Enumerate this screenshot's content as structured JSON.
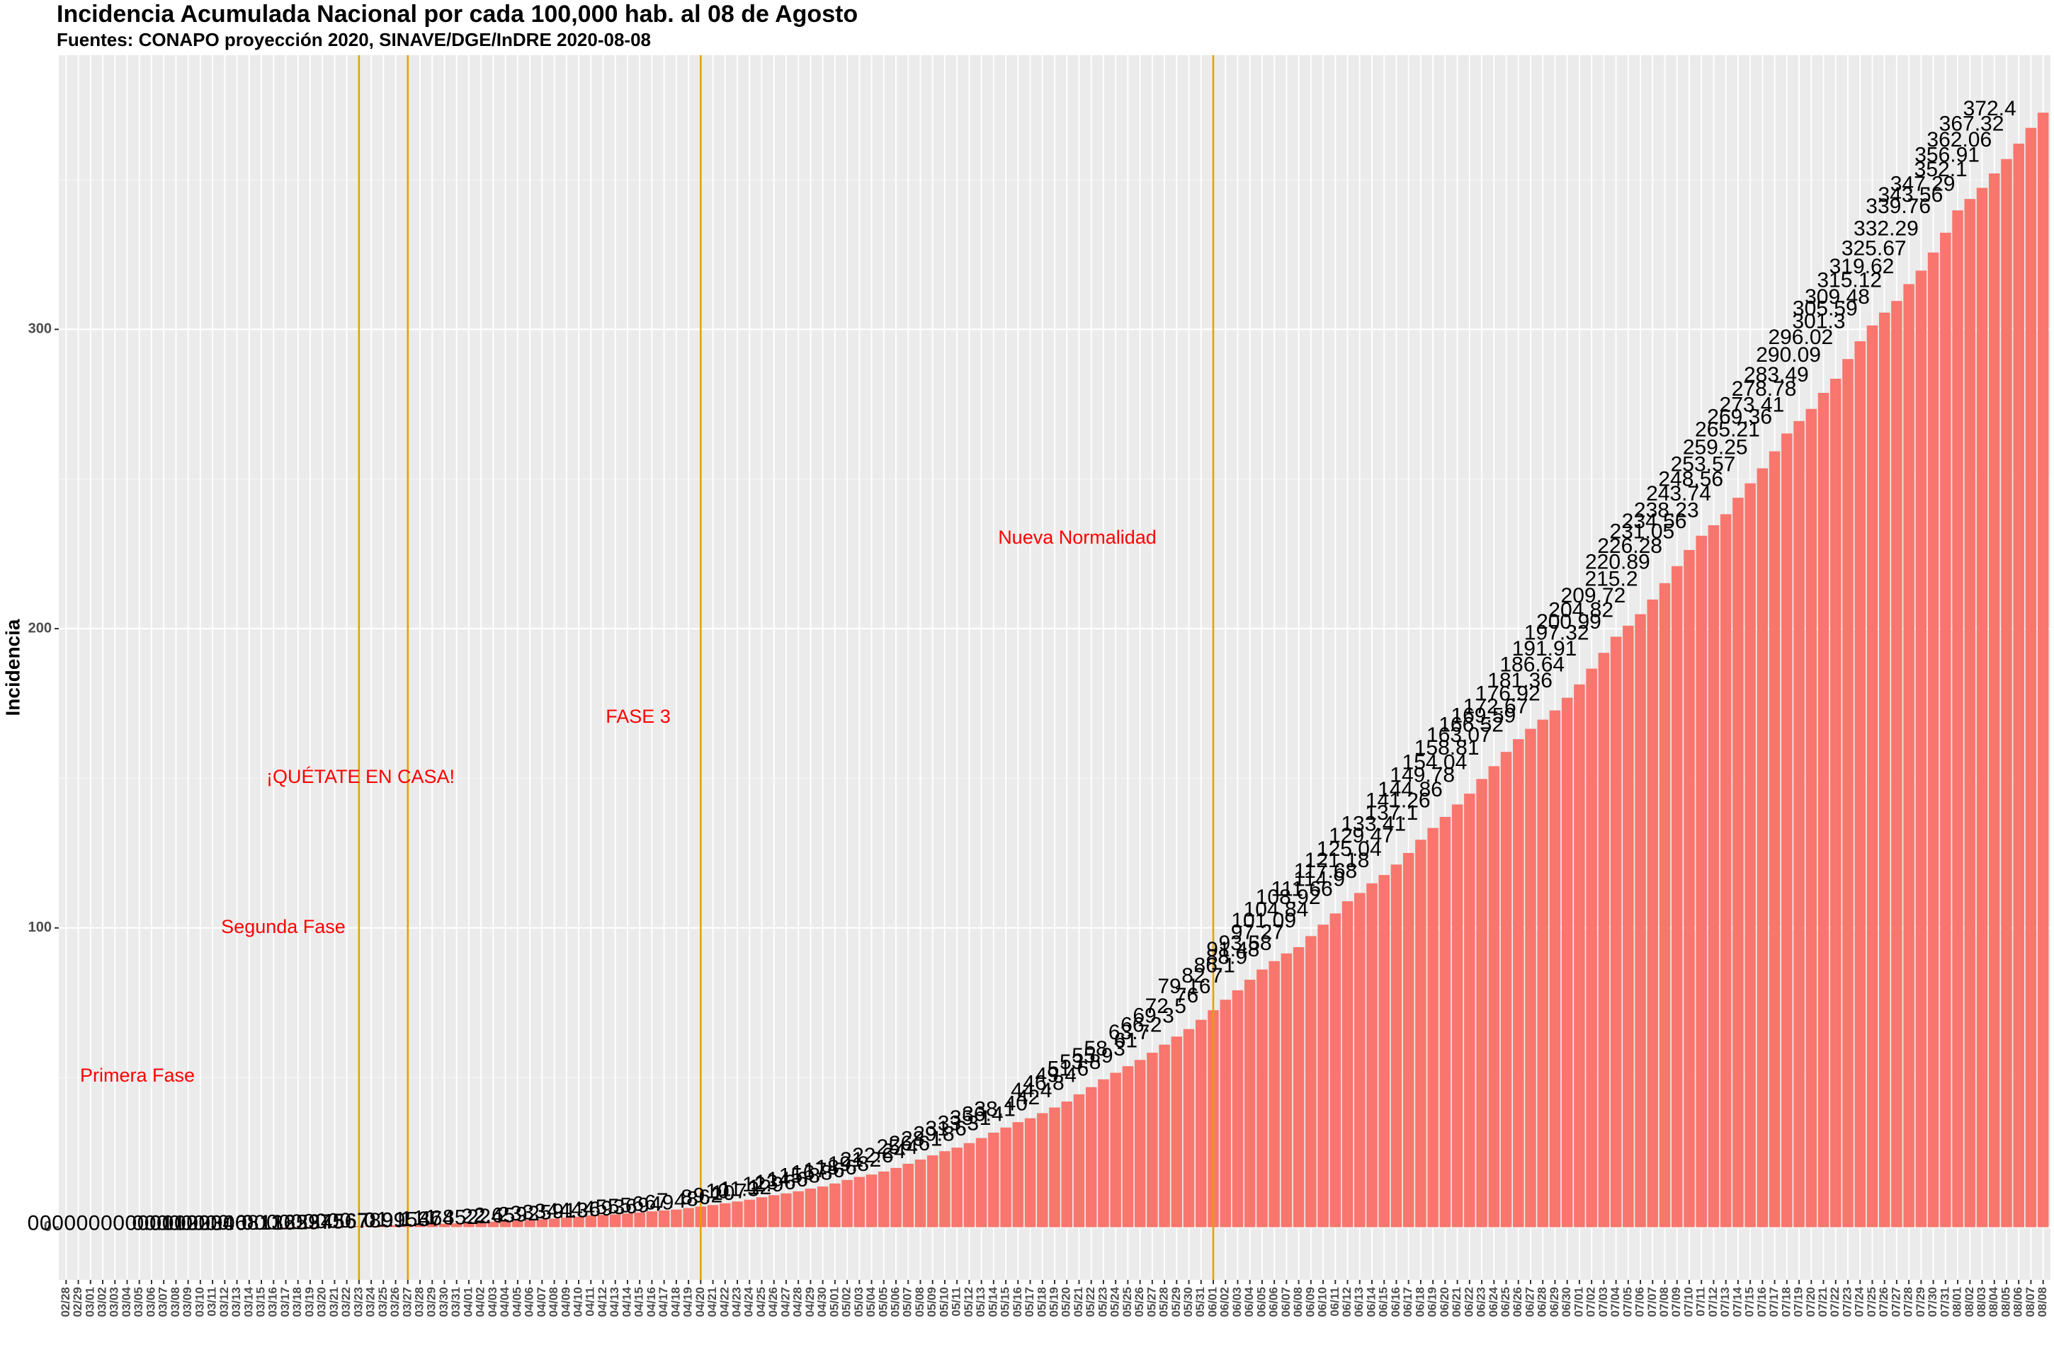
{
  "chart_data": {
    "type": "bar",
    "title": "Incidencia Acumulada Nacional por cada 100,000 hab. al 08 de Agosto",
    "subtitle": "Fuentes: CONAPO proyección 2020, SINAVE/DGE/InDRE 2020-08-08",
    "y_label": "Incidencia",
    "color": "#f8766d",
    "grid": true,
    "ylim": [
      -17.6,
      391.6
    ],
    "yticks": [
      0,
      100,
      200,
      300
    ],
    "yminor_grid": [
      50,
      150,
      250,
      350
    ],
    "vline_color": "#e69f00",
    "vlines": [
      "03/23",
      "03/27",
      "04/20",
      "06/01"
    ],
    "annotations": [
      "Primera Fase",
      "Segunda Fase",
      "¡QUÉTATE EN CASA!",
      "FASE 3",
      "Nueva Normalidad"
    ],
    "annotation_color": "#ff0000",
    "categories": [
      "02/28",
      "02/29",
      "03/01",
      "03/02",
      "03/03",
      "03/04",
      "03/05",
      "03/06",
      "03/07",
      "03/08",
      "03/09",
      "03/10",
      "03/11",
      "03/12",
      "03/13",
      "03/14",
      "03/15",
      "03/16",
      "03/17",
      "03/18",
      "03/19",
      "03/20",
      "03/21",
      "03/22",
      "03/23",
      "03/24",
      "03/25",
      "03/26",
      "03/27",
      "03/28",
      "03/29",
      "03/30",
      "03/31",
      "04/01",
      "04/02",
      "04/03",
      "04/04",
      "04/05",
      "04/06",
      "04/07",
      "04/08",
      "04/09",
      "04/10",
      "04/11",
      "04/12",
      "04/13",
      "04/14",
      "04/15",
      "04/16",
      "04/17",
      "04/18",
      "04/19",
      "04/20",
      "04/21",
      "04/22",
      "04/23",
      "04/24",
      "04/25",
      "04/26",
      "04/27",
      "04/28",
      "04/29",
      "04/30",
      "05/01",
      "05/02",
      "05/03",
      "05/04",
      "05/05",
      "05/06",
      "05/07",
      "05/08",
      "05/09",
      "05/10",
      "05/11",
      "05/12",
      "05/13",
      "05/14",
      "05/15",
      "05/16",
      "05/17",
      "05/18",
      "05/19",
      "05/20",
      "05/21",
      "05/22",
      "05/23",
      "05/24",
      "05/25",
      "05/26",
      "05/27",
      "05/28",
      "05/29",
      "05/30",
      "05/31",
      "06/01",
      "06/02",
      "06/03",
      "06/04",
      "06/05",
      "06/06",
      "06/07",
      "06/08",
      "06/09",
      "06/10",
      "06/11",
      "06/12",
      "06/13",
      "06/14",
      "06/15",
      "06/16",
      "06/17",
      "06/18",
      "06/19",
      "06/20",
      "06/21",
      "06/22",
      "06/23",
      "06/24",
      "06/25",
      "06/26",
      "06/27",
      "06/28",
      "06/29",
      "06/30",
      "07/01",
      "07/02",
      "07/03",
      "07/04",
      "07/05",
      "07/06",
      "07/07",
      "07/08",
      "07/09",
      "07/10",
      "07/11",
      "07/12",
      "07/13",
      "07/14",
      "07/15",
      "07/16",
      "07/17",
      "07/18",
      "07/19",
      "07/20",
      "07/21",
      "07/22",
      "07/23",
      "07/24",
      "07/25",
      "07/26",
      "07/27",
      "07/28",
      "07/29",
      "07/30",
      "07/31",
      "08/01",
      "08/02",
      "08/03",
      "08/04",
      "08/05",
      "08/06",
      "08/07",
      "08/08"
    ],
    "values": [
      0,
      0,
      0,
      0,
      0,
      0,
      0,
      0,
      0,
      0,
      0,
      0.01,
      0.01,
      0.02,
      0.02,
      0.03,
      0.04,
      0.06,
      0.08,
      0.1,
      0.13,
      0.16,
      0.25,
      0.29,
      0.37,
      0.45,
      0.56,
      0.67,
      0.78,
      0.9,
      0.99,
      1.15,
      1.3,
      1.47,
      1.64,
      1.85,
      2,
      2.2,
      2.4,
      2.65,
      2.9,
      3.2,
      3.5,
      3.9,
      4.1,
      4.3,
      4.6,
      4.9,
      5.3,
      5.6,
      5.9,
      6.4,
      6.9,
      7.4,
      8,
      8.6,
      9.2,
      10,
      10.7,
      11.3,
      12,
      12.9,
      13.6,
      14.6,
      15.8,
      16.8,
      17.6,
      18.6,
      19.8,
      21.2,
      22.6,
      24,
      25.4,
      26.6,
      28.1,
      29.8,
      31.6,
      33.3,
      35.1,
      36.4,
      38.1,
      40,
      42,
      44.4,
      46.8,
      49.4,
      51.6,
      53.8,
      55.9,
      58.3,
      61,
      63.7,
      66.2,
      69.3,
      72.5,
      76,
      79.16,
      82.7,
      86.1,
      88.9,
      91.48,
      93.58,
      97.27,
      101.09,
      104.84,
      108.92,
      111.66,
      114.9,
      117.68,
      121.18,
      125.04,
      129.47,
      133.41,
      137.1,
      141.26,
      144.86,
      149.78,
      154.04,
      158.81,
      163.07,
      166.52,
      169.59,
      172.67,
      176.92,
      181.36,
      186.64,
      191.91,
      197.32,
      200.99,
      204.82,
      209.72,
      215.2,
      220.89,
      226.28,
      231.05,
      234.56,
      238.23,
      243.74,
      248.56,
      253.57,
      259.25,
      265.21,
      269.36,
      273.41,
      278.78,
      283.49,
      290.09,
      296.02,
      301.3,
      305.59,
      309.48,
      315.12,
      319.62,
      325.67,
      332.29,
      339.76,
      343.56,
      347.29,
      352.1,
      356.91,
      362.06,
      367.32,
      372.4
    ]
  }
}
